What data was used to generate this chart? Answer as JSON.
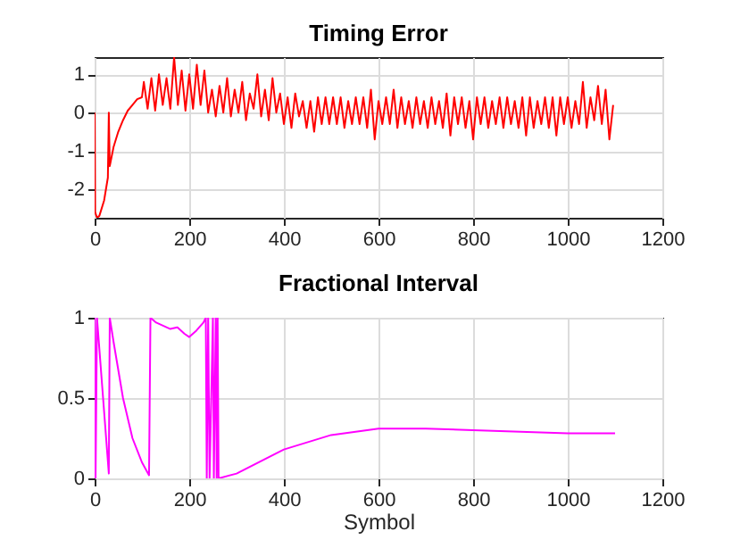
{
  "chart_data": [
    {
      "type": "line",
      "title": "Timing Error",
      "xlim": [
        0,
        1200
      ],
      "xticks": [
        0,
        200,
        400,
        600,
        800,
        1000,
        1200
      ],
      "ylim": [
        -2.75,
        1.45
      ],
      "yticks": [
        -2,
        -1,
        0,
        1
      ],
      "grid": true,
      "series": [
        {
          "color": "#ff0000",
          "x": [
            0,
            1,
            5,
            10,
            20,
            28,
            30,
            32,
            40,
            50,
            60,
            70,
            80,
            90,
            100,
            104,
            112,
            120,
            128,
            136,
            144,
            152,
            160,
            168,
            176,
            184,
            192,
            200,
            208,
            216,
            224,
            232,
            240,
            248,
            256,
            264,
            272,
            280,
            288,
            296,
            304,
            312,
            320,
            328,
            336,
            344,
            352,
            360,
            368,
            376,
            384,
            392,
            400,
            408,
            416,
            424,
            432,
            440,
            448,
            456,
            464,
            472,
            480,
            488,
            496,
            504,
            512,
            520,
            528,
            536,
            544,
            552,
            560,
            568,
            576,
            584,
            592,
            600,
            608,
            616,
            624,
            632,
            640,
            648,
            656,
            664,
            672,
            680,
            688,
            696,
            704,
            712,
            720,
            728,
            736,
            744,
            752,
            760,
            768,
            776,
            784,
            792,
            800,
            808,
            816,
            824,
            832,
            840,
            848,
            856,
            864,
            872,
            880,
            888,
            896,
            904,
            912,
            920,
            928,
            936,
            944,
            952,
            960,
            968,
            976,
            984,
            992,
            1000,
            1008,
            1016,
            1024,
            1032,
            1040,
            1048,
            1056,
            1064,
            1072,
            1080,
            1088,
            1096
          ],
          "values": [
            0,
            -2.6,
            -2.75,
            -2.7,
            -2.3,
            -1.7,
            0,
            -1.4,
            -0.9,
            -0.5,
            -0.2,
            0.05,
            0.2,
            0.35,
            0.4,
            0.8,
            0.1,
            0.9,
            0.05,
            1.0,
            0.2,
            0.9,
            0.1,
            1.45,
            0.2,
            1.1,
            0.05,
            1.0,
            0.1,
            1.25,
            0.2,
            1.1,
            0.0,
            0.6,
            -0.1,
            0.7,
            0.0,
            0.9,
            -0.1,
            0.6,
            0.0,
            0.8,
            -0.2,
            0.5,
            0.1,
            1.0,
            -0.1,
            0.6,
            -0.2,
            0.9,
            0.0,
            0.5,
            -0.3,
            0.4,
            -0.4,
            0.5,
            -0.1,
            0.3,
            -0.4,
            0.3,
            -0.5,
            0.4,
            -0.3,
            0.4,
            -0.3,
            0.4,
            -0.3,
            0.4,
            -0.4,
            0.3,
            -0.3,
            0.4,
            -0.3,
            0.4,
            -0.4,
            0.6,
            -0.7,
            0.3,
            -0.3,
            0.4,
            -0.3,
            0.6,
            -0.4,
            0.4,
            -0.3,
            0.3,
            -0.4,
            0.4,
            -0.3,
            0.3,
            -0.4,
            0.4,
            -0.3,
            0.3,
            -0.4,
            0.5,
            -0.6,
            0.4,
            -0.3,
            0.4,
            -0.4,
            0.3,
            -0.7,
            0.4,
            -0.3,
            0.4,
            -0.4,
            0.3,
            -0.3,
            0.4,
            -0.4,
            0.4,
            -0.3,
            0.3,
            -0.4,
            0.4,
            -0.6,
            0.4,
            -0.4,
            0.3,
            -0.3,
            0.4,
            -0.4,
            0.4,
            -0.6,
            0.4,
            -0.3,
            0.4,
            -0.4,
            0.3,
            -0.3,
            0.8,
            -0.4,
            0.4,
            -0.2,
            0.7,
            -0.3,
            0.6,
            -0.7,
            0.2
          ]
        }
      ]
    },
    {
      "type": "line",
      "title": "Fractional Interval",
      "xlabel": "Symbol",
      "xlim": [
        0,
        1200
      ],
      "xticks": [
        0,
        200,
        400,
        600,
        800,
        1000,
        1200
      ],
      "ylim": [
        0,
        1
      ],
      "yticks": [
        0,
        0.5,
        1
      ],
      "grid": true,
      "series": [
        {
          "color": "#ff00ff",
          "x": [
            0,
            2,
            5,
            30,
            32,
            40,
            60,
            80,
            100,
            115,
            118,
            130,
            160,
            175,
            190,
            200,
            215,
            230,
            235,
            237,
            240,
            243,
            250,
            252,
            256,
            258,
            260,
            262,
            300,
            400,
            500,
            600,
            700,
            800,
            900,
            1000,
            1100
          ],
          "values": [
            1,
            0,
            1,
            0.03,
            1,
            0.85,
            0.5,
            0.25,
            0.1,
            0.02,
            1,
            0.97,
            0.93,
            0.94,
            0.9,
            0.88,
            0.92,
            0.97,
            1,
            0,
            1,
            0,
            1,
            0,
            1,
            0,
            1,
            0,
            0.03,
            0.18,
            0.27,
            0.31,
            0.31,
            0.3,
            0.29,
            0.28,
            0.28
          ]
        }
      ]
    }
  ]
}
